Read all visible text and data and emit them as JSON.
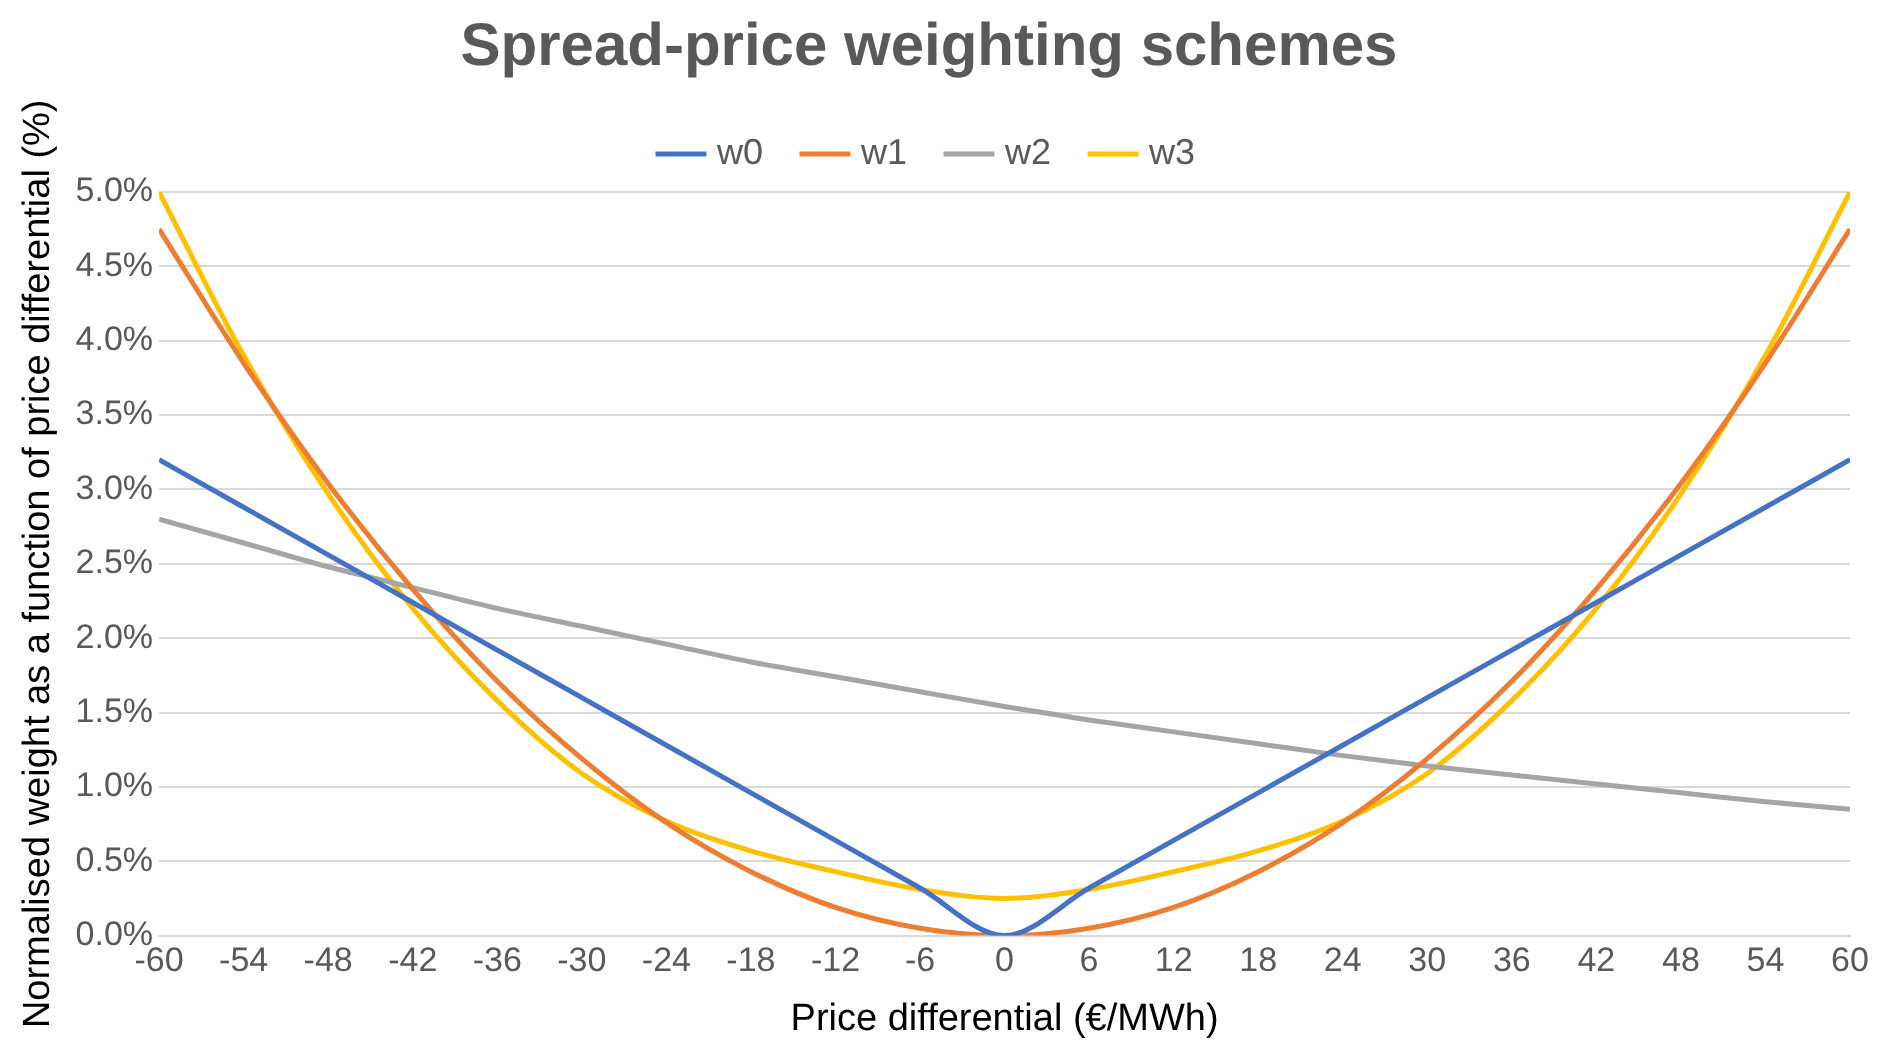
{
  "chart_data": {
    "type": "line",
    "title": "Spread-price weighting schemes",
    "xlabel": "Price differential (€/MWh)",
    "ylabel": "Normalised weight as a function of price differential (%)",
    "x": [
      -60,
      -54,
      -48,
      -42,
      -36,
      -30,
      -24,
      -18,
      -12,
      -6,
      0,
      6,
      12,
      18,
      24,
      30,
      36,
      42,
      48,
      54,
      60
    ],
    "series": [
      {
        "name": "w0",
        "color": "#4472c4",
        "values": [
          3.2,
          2.88,
          2.56,
          2.24,
          1.92,
          1.6,
          1.28,
          0.96,
          0.64,
          0.32,
          0,
          0.32,
          0.64,
          0.96,
          1.28,
          1.6,
          1.92,
          2.24,
          2.56,
          2.88,
          3.2
        ]
      },
      {
        "name": "w1",
        "color": "#ed7d31",
        "values": [
          4.75,
          3.85,
          3.04,
          2.33,
          1.71,
          1.19,
          0.76,
          0.43,
          0.19,
          0.05,
          0,
          0.05,
          0.19,
          0.43,
          0.76,
          1.19,
          1.71,
          2.33,
          3.04,
          3.85,
          4.75
        ]
      },
      {
        "name": "w2",
        "color": "#a5a5a5",
        "values": [
          2.8,
          2.64,
          2.48,
          2.34,
          2.2,
          2.08,
          1.96,
          1.84,
          1.74,
          1.64,
          1.54,
          1.45,
          1.37,
          1.29,
          1.21,
          1.14,
          1.08,
          1.02,
          0.96,
          0.9,
          0.85
        ]
      },
      {
        "name": "w3",
        "color": "#ffc000",
        "values": [
          5.0,
          3.9,
          2.97,
          2.2,
          1.58,
          1.09,
          0.77,
          0.57,
          0.43,
          0.31,
          0.25,
          0.31,
          0.43,
          0.57,
          0.77,
          1.09,
          1.58,
          2.2,
          2.97,
          3.9,
          5.0
        ]
      }
    ],
    "xlim": [
      -60,
      60
    ],
    "xticks": [
      -60,
      -54,
      -48,
      -42,
      -36,
      -30,
      -24,
      -18,
      -12,
      -6,
      0,
      6,
      12,
      18,
      24,
      30,
      36,
      42,
      48,
      54,
      60
    ],
    "ylim": [
      0,
      5
    ],
    "yticks": [
      {
        "value": 0,
        "label": "0.0%"
      },
      {
        "value": 0.5,
        "label": "0.5%"
      },
      {
        "value": 1,
        "label": "1.0%"
      },
      {
        "value": 1.5,
        "label": "1.5%"
      },
      {
        "value": 2,
        "label": "2.0%"
      },
      {
        "value": 2.5,
        "label": "2.5%"
      },
      {
        "value": 3,
        "label": "3.0%"
      },
      {
        "value": 3.5,
        "label": "3.5%"
      },
      {
        "value": 4,
        "label": "4.0%"
      },
      {
        "value": 4.5,
        "label": "4.5%"
      },
      {
        "value": 5,
        "label": "5.0%"
      }
    ],
    "grid": "y",
    "legend": "top",
    "marker": "none",
    "line_style": "solid"
  }
}
